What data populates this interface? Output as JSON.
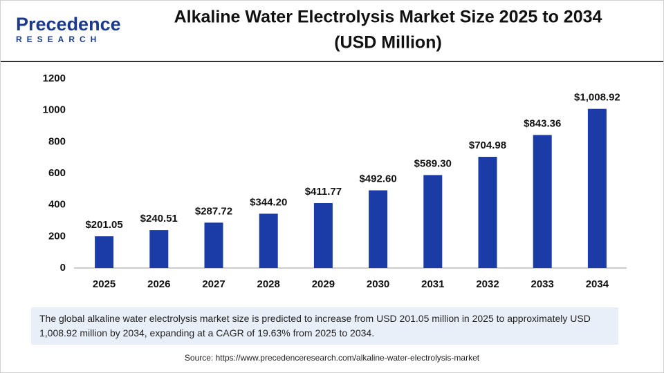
{
  "logo": {
    "name": "Precedence",
    "tagline": "RESEARCH"
  },
  "chart_data": {
    "type": "bar",
    "title": "Alkaline Water Electrolysis Market Size 2025 to 2034",
    "subtitle": "(USD Million)",
    "categories": [
      "2025",
      "2026",
      "2027",
      "2028",
      "2029",
      "2030",
      "2031",
      "2032",
      "2033",
      "2034"
    ],
    "values": [
      201.05,
      240.51,
      287.72,
      344.2,
      411.77,
      492.6,
      589.3,
      704.98,
      843.36,
      1008.92
    ],
    "value_labels": [
      "$201.05",
      "$240.51",
      "$287.72",
      "$344.20",
      "$411.77",
      "$492.60",
      "$589.30",
      "$704.98",
      "$843.36",
      "$1,008.92"
    ],
    "color": "#1b3ca6",
    "ylim": [
      0,
      1200
    ],
    "yticks": [
      0,
      200,
      400,
      600,
      800,
      1000,
      1200
    ],
    "grid": false
  },
  "description": "The global alkaline water electrolysis market size is predicted to increase from USD 201.05 million in 2025 to approximately USD 1,008.92 million by 2034, expanding at a CAGR of 19.63% from 2025 to 2034.",
  "source": "Source: https://www.precedenceresearch.com/alkaline-water-electrolysis-market"
}
